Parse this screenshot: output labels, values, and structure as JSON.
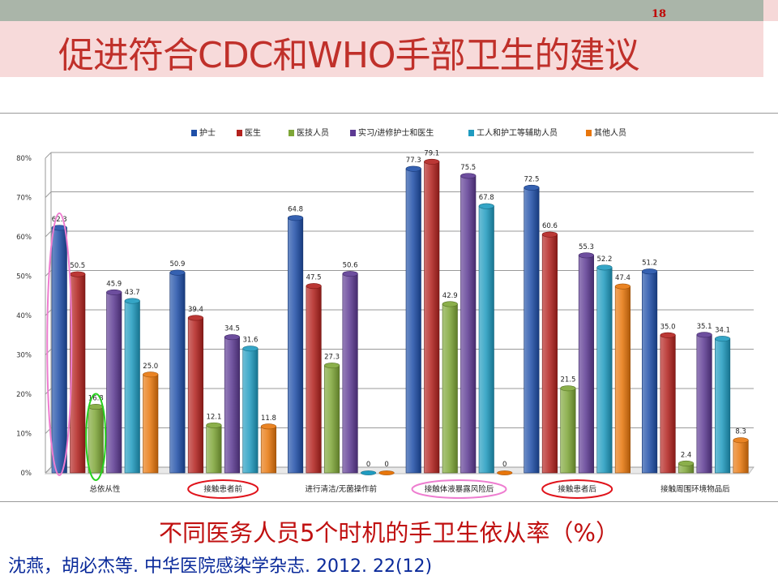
{
  "slide_number": "18",
  "title": "促进符合CDC和WHO手部卫生的建议",
  "caption": "不同医务人员5个时机的手卫生依从率（%）",
  "reference": "沈燕，胡必杰等. 中华医院感染学杂志. 2012. 22(12)",
  "chart_data": {
    "type": "bar",
    "categories": [
      "总依从性",
      "接触患者前",
      "进行清洁/无菌操作前",
      "接触体液暴露风险后",
      "接触患者后",
      "接触周围环境物品后"
    ],
    "series": [
      {
        "name": "护士",
        "color": "#1f4fa8",
        "values": [
          62.3,
          50.9,
          64.8,
          77.3,
          72.5,
          51.2
        ]
      },
      {
        "name": "医生",
        "color": "#b3221e",
        "values": [
          50.5,
          39.4,
          47.5,
          79.1,
          60.6,
          35.0
        ]
      },
      {
        "name": "医技人员",
        "color": "#7ea637",
        "values": [
          16.8,
          12.1,
          27.3,
          42.9,
          21.5,
          2.4
        ]
      },
      {
        "name": "实习/进修护士和医生",
        "color": "#5d3a93",
        "values": [
          45.9,
          34.5,
          50.6,
          75.5,
          55.3,
          35.1
        ]
      },
      {
        "name": "工人和护工等辅助人员",
        "color": "#1f9bc0",
        "values": [
          43.7,
          31.6,
          0,
          67.8,
          52.2,
          34.1
        ]
      },
      {
        "name": "其他人员",
        "color": "#e8760c",
        "values": [
          25.0,
          11.8,
          0,
          0,
          47.4,
          8.3
        ]
      }
    ],
    "value_labels": [
      [
        "62.3",
        "50.9",
        "64.8",
        "77.3",
        "72.5",
        "51.2"
      ],
      [
        "50.5",
        "39.4",
        "47.5",
        "79.1",
        "60.6",
        "35.0"
      ],
      [
        "16.8",
        "12.1",
        "27.3",
        "42.9",
        "21.5",
        "2.4"
      ],
      [
        "45.9",
        "34.5",
        "50.6",
        "75.5",
        "55.3",
        "35.1"
      ],
      [
        "43.7",
        "31.6",
        "0",
        "67.8",
        "52.2",
        "34.1"
      ],
      [
        "25.0",
        "11.8",
        "0",
        "0",
        "47.4",
        "8.3"
      ]
    ],
    "y_ticks": [
      "0%",
      "10%",
      "20%",
      "30%",
      "40%",
      "50%",
      "60%",
      "70%",
      "80%"
    ],
    "ylim": [
      0,
      80
    ],
    "grid": true,
    "legend_position": "top",
    "highlighted_categories": {
      "red_ellipse": [
        "接触患者前",
        "接触患者后"
      ],
      "pink_ellipse": [
        "接触体液暴露风险后"
      ]
    },
    "highlighted_bars": {
      "pink_ellipse": {
        "category": "总依从性",
        "series": "护士"
      },
      "green_ellipse": {
        "category": "总依从性",
        "series": "医技人员"
      }
    }
  }
}
